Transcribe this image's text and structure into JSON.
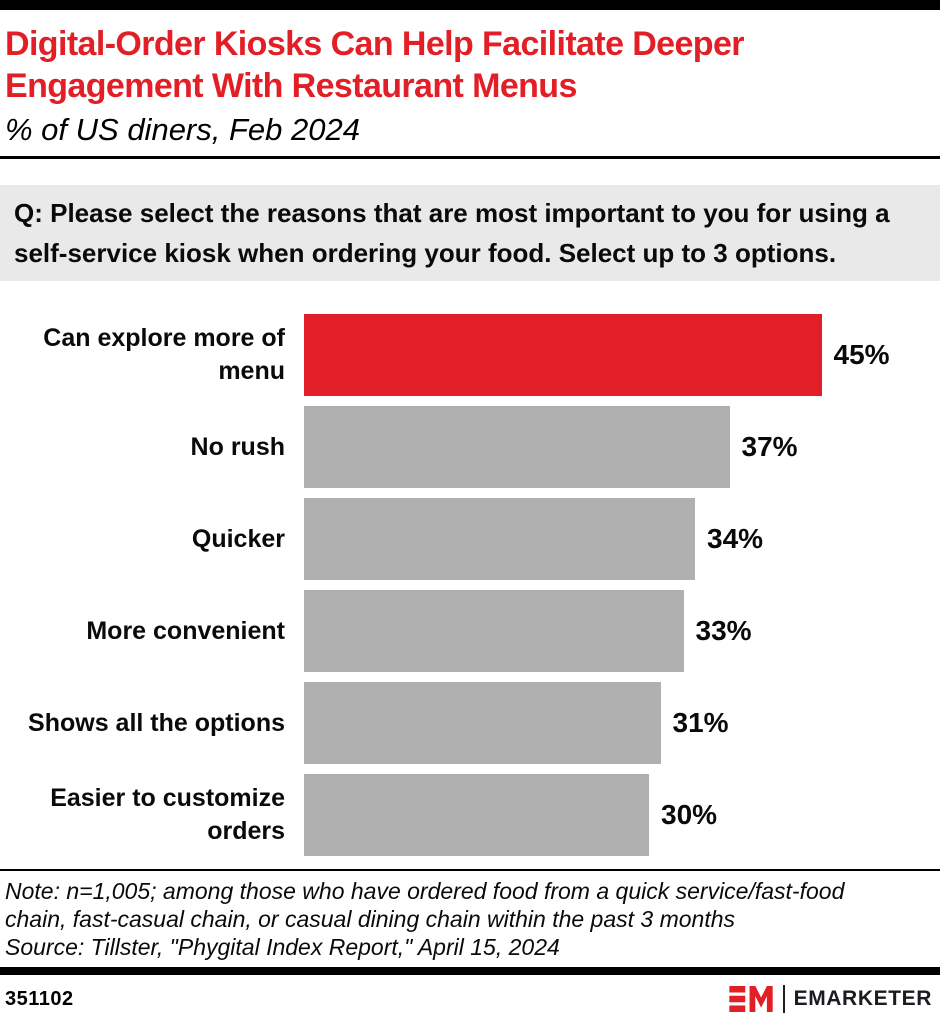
{
  "header": {
    "title_lines": [
      "Digital-Order Kiosks Can Help Facilitate Deeper",
      "Engagement With Restaurant Menus"
    ],
    "subtitle": "% of US diners, Feb 2024"
  },
  "question": {
    "lines": [
      "Q: Please select the reasons that are most important to you for using a",
      "self-service kiosk when ordering your food. Select up to 3 options."
    ]
  },
  "chart_data": {
    "type": "bar",
    "orientation": "horizontal",
    "title": "Digital-Order Kiosks Can Help Facilitate Deeper Engagement With Restaurant Menus",
    "subtitle": "% of US diners, Feb 2024",
    "categories": [
      "Can explore more of menu",
      "No rush",
      "Quicker",
      "More convenient",
      "Shows all the options",
      "Easier to customize orders"
    ],
    "values": [
      45,
      37,
      34,
      33,
      31,
      30
    ],
    "value_labels": [
      "45%",
      "37%",
      "34%",
      "33%",
      "31%",
      "30%"
    ],
    "unit": "%",
    "xlim": [
      0,
      45
    ],
    "grid": false,
    "legend": false,
    "value_label_position": "right-of-bar",
    "highlight_index": 0,
    "bar_colors": {
      "highlight": "#e21f26",
      "default": "#b0b0b0"
    }
  },
  "footnote": {
    "note_lines": [
      "Note: n=1,005; among those who have ordered food from a quick service/fast-food",
      "chain, fast-casual chain, or casual dining chain within the past 3 months"
    ],
    "source": "Source: Tillster, \"Phygital Index Report,\" April 15, 2024"
  },
  "footer": {
    "chart_id": "351102",
    "brand": "EMARKETER",
    "brand_color": "#e21f26"
  }
}
